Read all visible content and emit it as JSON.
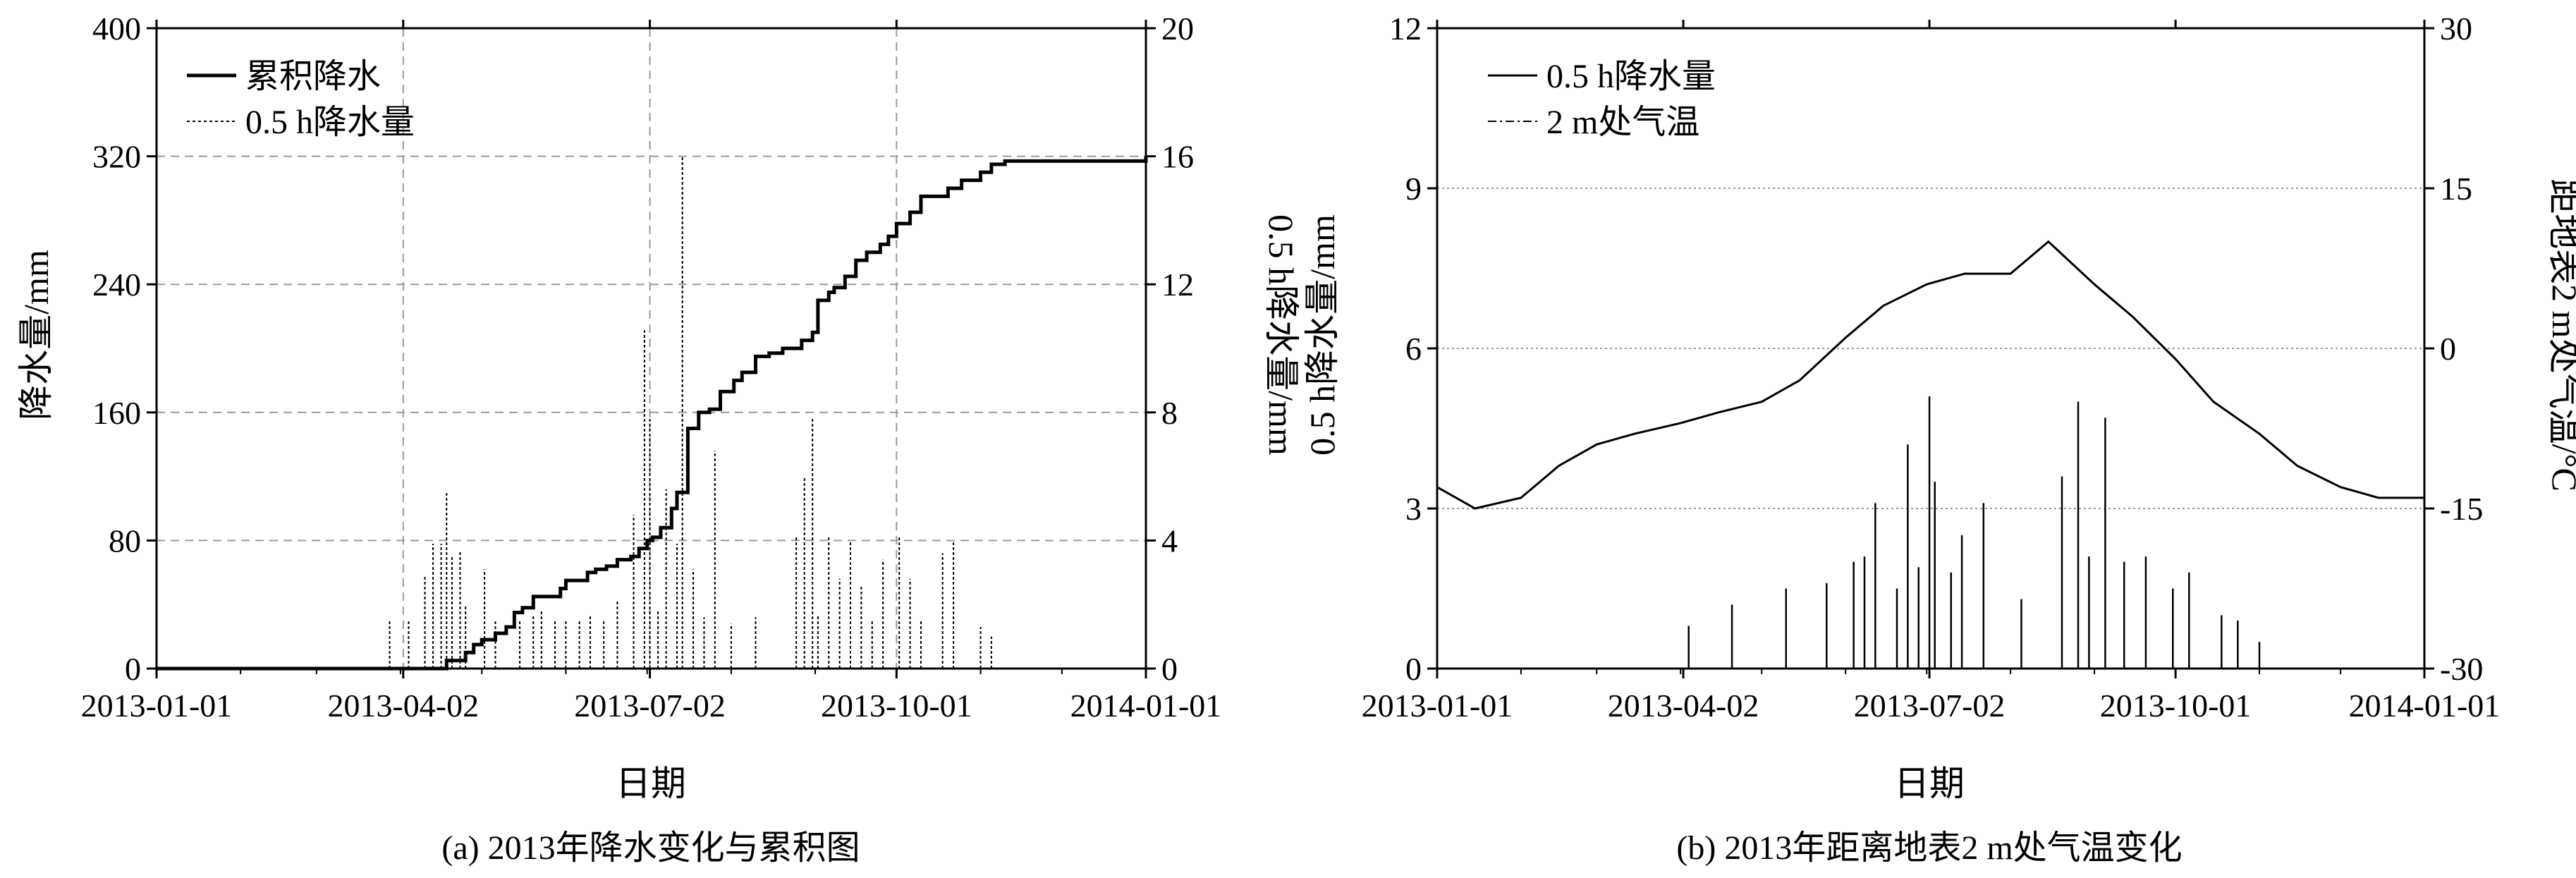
{
  "chart_data": [
    {
      "type": "line",
      "caption": "(a) 2013年降水变化与累积图",
      "xlabel": "日期",
      "ylabel": "降水量/mm",
      "ylabel_right": "0.5 h降水量/mm",
      "x_ticks": [
        "2013-01-01",
        "2013-04-02",
        "2013-07-02",
        "2013-10-01",
        "2014-01-01"
      ],
      "ylim": [
        0,
        400
      ],
      "y_ticks": [
        0,
        80,
        160,
        240,
        320,
        400
      ],
      "ylim_right": [
        0,
        20
      ],
      "y_ticks_right": [
        0,
        4,
        8,
        12,
        16,
        20
      ],
      "grid": true,
      "legend_position": "top-left",
      "series": [
        {
          "name": "累积降水",
          "axis": "left",
          "style": "solid",
          "x": [
            "2013-01-01",
            "2013-04-02",
            "2013-04-18",
            "2013-04-25",
            "2013-04-28",
            "2013-05-01",
            "2013-05-06",
            "2013-05-10",
            "2013-05-13",
            "2013-05-16",
            "2013-05-20",
            "2013-05-30",
            "2013-06-01",
            "2013-06-09",
            "2013-06-12",
            "2013-06-16",
            "2013-06-20",
            "2013-06-25",
            "2013-06-28",
            "2013-07-01",
            "2013-07-03",
            "2013-07-06",
            "2013-07-10",
            "2013-07-12",
            "2013-07-16",
            "2013-07-20",
            "2013-07-24",
            "2013-07-28",
            "2013-08-02",
            "2013-08-05",
            "2013-08-10",
            "2013-08-15",
            "2013-08-20",
            "2013-08-25",
            "2013-08-27",
            "2013-08-31",
            "2013-09-02",
            "2013-09-06",
            "2013-09-08",
            "2013-09-12",
            "2013-09-16",
            "2013-09-20",
            "2013-09-25",
            "2013-09-28",
            "2013-10-01",
            "2013-10-06",
            "2013-10-10",
            "2013-10-20",
            "2013-10-25",
            "2013-11-01",
            "2013-11-05",
            "2013-11-10",
            "2014-01-01"
          ],
          "values": [
            0,
            0,
            5,
            10,
            15,
            18,
            22,
            26,
            35,
            38,
            45,
            50,
            55,
            60,
            62,
            64,
            68,
            70,
            75,
            80,
            82,
            88,
            100,
            110,
            150,
            160,
            162,
            173,
            180,
            185,
            195,
            197,
            200,
            200,
            205,
            210,
            230,
            235,
            238,
            245,
            255,
            260,
            265,
            270,
            278,
            285,
            295,
            300,
            305,
            310,
            315,
            317,
            320
          ]
        },
        {
          "name": "0.5 h降水量",
          "axis": "right",
          "style": "dotted",
          "x": [
            "2013-03-28",
            "2013-04-04",
            "2013-04-10",
            "2013-04-13",
            "2013-04-16",
            "2013-04-18",
            "2013-04-20",
            "2013-04-23",
            "2013-04-25",
            "2013-05-02",
            "2013-05-06",
            "2013-05-15",
            "2013-05-20",
            "2013-05-23",
            "2013-05-28",
            "2013-06-01",
            "2013-06-06",
            "2013-06-10",
            "2013-06-15",
            "2013-06-20",
            "2013-06-26",
            "2013-06-30",
            "2013-07-02",
            "2013-07-05",
            "2013-07-08",
            "2013-07-12",
            "2013-07-14",
            "2013-07-18",
            "2013-07-22",
            "2013-07-26",
            "2013-08-01",
            "2013-08-10",
            "2013-08-25",
            "2013-08-28",
            "2013-08-31",
            "2013-09-02",
            "2013-09-06",
            "2013-09-10",
            "2013-09-14",
            "2013-09-18",
            "2013-09-22",
            "2013-09-26",
            "2013-10-02",
            "2013-10-06",
            "2013-10-10",
            "2013-10-18",
            "2013-10-22",
            "2013-11-01",
            "2013-11-05"
          ],
          "values": [
            1.5,
            1.5,
            2.9,
            3.9,
            3.9,
            5.5,
            3.5,
            3.7,
            2.0,
            3.1,
            1.5,
            1.5,
            1.7,
            1.8,
            1.5,
            1.5,
            1.5,
            1.7,
            1.5,
            2.1,
            4.8,
            10.6,
            7.8,
            1.8,
            5.6,
            3.9,
            16.0,
            3.1,
            1.6,
            6.8,
            1.4,
            1.6,
            4.1,
            6.0,
            7.8,
            1.7,
            4.1,
            2.8,
            4.0,
            2.6,
            1.5,
            3.4,
            4.1,
            2.8,
            1.5,
            3.6,
            4.0,
            1.3,
            1.0
          ]
        }
      ]
    },
    {
      "type": "line",
      "caption": "(b) 2013年距离地表2 m处气温变化",
      "xlabel": "日期",
      "ylabel": "0.5 h降水量/mm",
      "ylabel_right": "距地表2 m处气温/°C",
      "x_ticks": [
        "2013-01-01",
        "2013-04-02",
        "2013-07-02",
        "2013-10-01",
        "2014-01-01"
      ],
      "ylim": [
        0,
        12
      ],
      "y_ticks": [
        0,
        3,
        6,
        9,
        12
      ],
      "ylim_right": [
        -30,
        30
      ],
      "y_ticks_right": [
        -30,
        -15,
        0,
        15,
        30
      ],
      "grid": true,
      "legend_position": "top-left",
      "series": [
        {
          "name": "0.5 h降水量",
          "axis": "left",
          "style": "solid",
          "x": [
            "2013-04-04",
            "2013-04-20",
            "2013-05-10",
            "2013-05-25",
            "2013-06-04",
            "2013-06-08",
            "2013-06-12",
            "2013-06-20",
            "2013-06-24",
            "2013-06-28",
            "2013-07-02",
            "2013-07-04",
            "2013-07-10",
            "2013-07-14",
            "2013-07-22",
            "2013-08-05",
            "2013-08-20",
            "2013-08-26",
            "2013-08-30",
            "2013-09-05",
            "2013-09-12",
            "2013-09-20",
            "2013-09-30",
            "2013-10-06",
            "2013-10-18",
            "2013-10-24",
            "2013-11-01"
          ],
          "values": [
            0.8,
            1.2,
            1.5,
            1.6,
            2.0,
            2.1,
            3.1,
            1.5,
            4.2,
            1.9,
            5.1,
            3.5,
            1.8,
            2.5,
            3.1,
            1.3,
            3.6,
            5.0,
            2.1,
            4.7,
            2.0,
            2.1,
            1.5,
            1.8,
            1.0,
            0.9,
            0.5
          ]
        },
        {
          "name": "2 m处气温",
          "axis": "right",
          "style": "dash-dot",
          "x": [
            "2013-01-01",
            "2013-01-15",
            "2013-02-01",
            "2013-02-15",
            "2013-03-01",
            "2013-03-15",
            "2013-04-01",
            "2013-04-15",
            "2013-05-01",
            "2013-05-15",
            "2013-06-01",
            "2013-06-15",
            "2013-07-01",
            "2013-07-15",
            "2013-08-01",
            "2013-08-15",
            "2013-09-01",
            "2013-09-15",
            "2013-10-01",
            "2013-10-15",
            "2013-11-01",
            "2013-11-15",
            "2013-12-01",
            "2013-12-15",
            "2014-01-01"
          ],
          "values": [
            -13,
            -15,
            -14,
            -11,
            -9,
            -8,
            -7,
            -6,
            -5,
            -3,
            1,
            4,
            6,
            7,
            7,
            10,
            6,
            3,
            -1,
            -5,
            -8,
            -11,
            -13,
            -14,
            -14
          ]
        }
      ]
    }
  ]
}
